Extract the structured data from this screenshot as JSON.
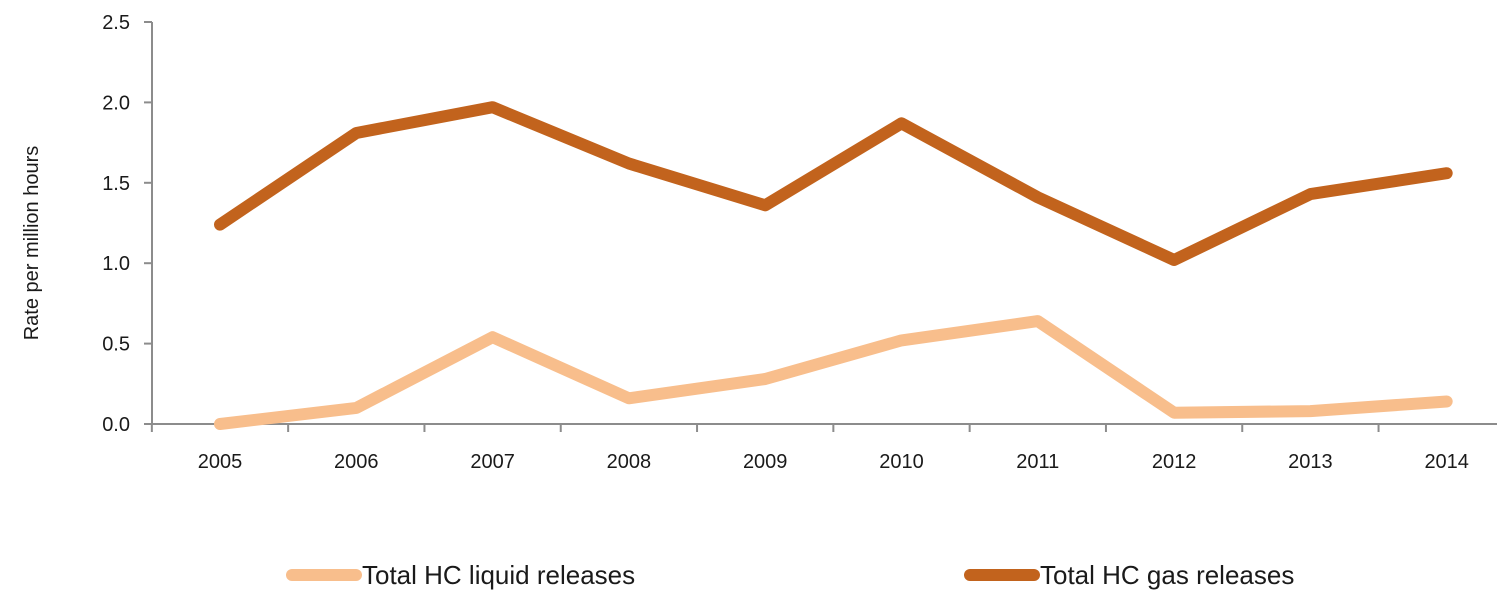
{
  "chart_data": {
    "type": "line",
    "categories": [
      "2005",
      "2006",
      "2007",
      "2008",
      "2009",
      "2010",
      "2011",
      "2012",
      "2013",
      "2014"
    ],
    "ylabel": "Rate per million hours",
    "ylim": [
      0,
      2.5
    ],
    "yticks": [
      "0.0",
      "0.5",
      "1.0",
      "1.5",
      "2.0",
      "2.5"
    ],
    "grid": false,
    "legend_position": "bottom",
    "series": [
      {
        "name": "Total HC liquid releases",
        "color": "#F8BE8C",
        "values": [
          0.0,
          0.1,
          0.54,
          0.16,
          0.28,
          0.52,
          0.64,
          0.07,
          0.08,
          0.14
        ]
      },
      {
        "name": "Total HC gas releases",
        "color": "#C2631D",
        "values": [
          1.24,
          1.81,
          1.97,
          1.62,
          1.36,
          1.87,
          1.41,
          1.02,
          1.43,
          1.56
        ]
      }
    ]
  }
}
